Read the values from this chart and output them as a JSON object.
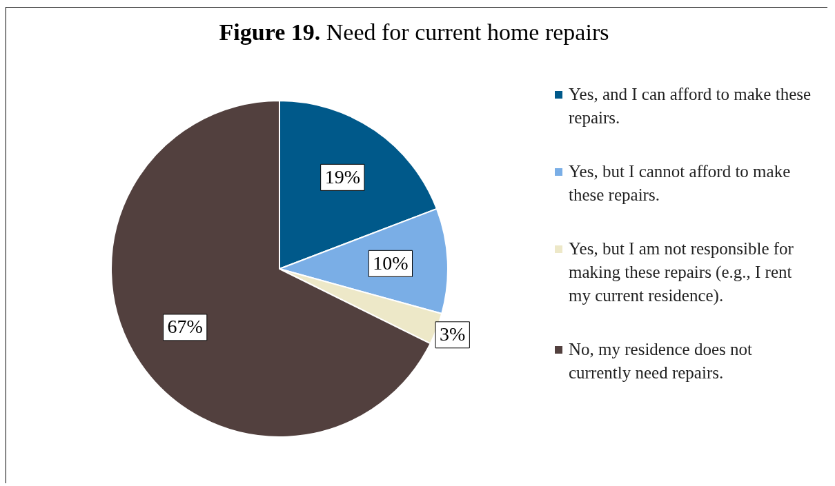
{
  "chart_data": {
    "type": "pie",
    "title": "Figure 19. Need for current home repairs",
    "categories": [
      "Yes, and I can afford to make these repairs.",
      "Yes, but I cannot afford to make these repairs.",
      "Yes, but I am not responsible for making these repairs (e.g., I rent my current residence).",
      "No, my residence does not currently need repairs."
    ],
    "values": [
      19,
      10,
      3,
      67
    ],
    "value_labels": [
      "19%",
      "10%",
      "3%",
      "67%"
    ],
    "colors": [
      "#00598a",
      "#7aaee6",
      "#ede8c8",
      "#52403e"
    ],
    "legend": "right"
  }
}
